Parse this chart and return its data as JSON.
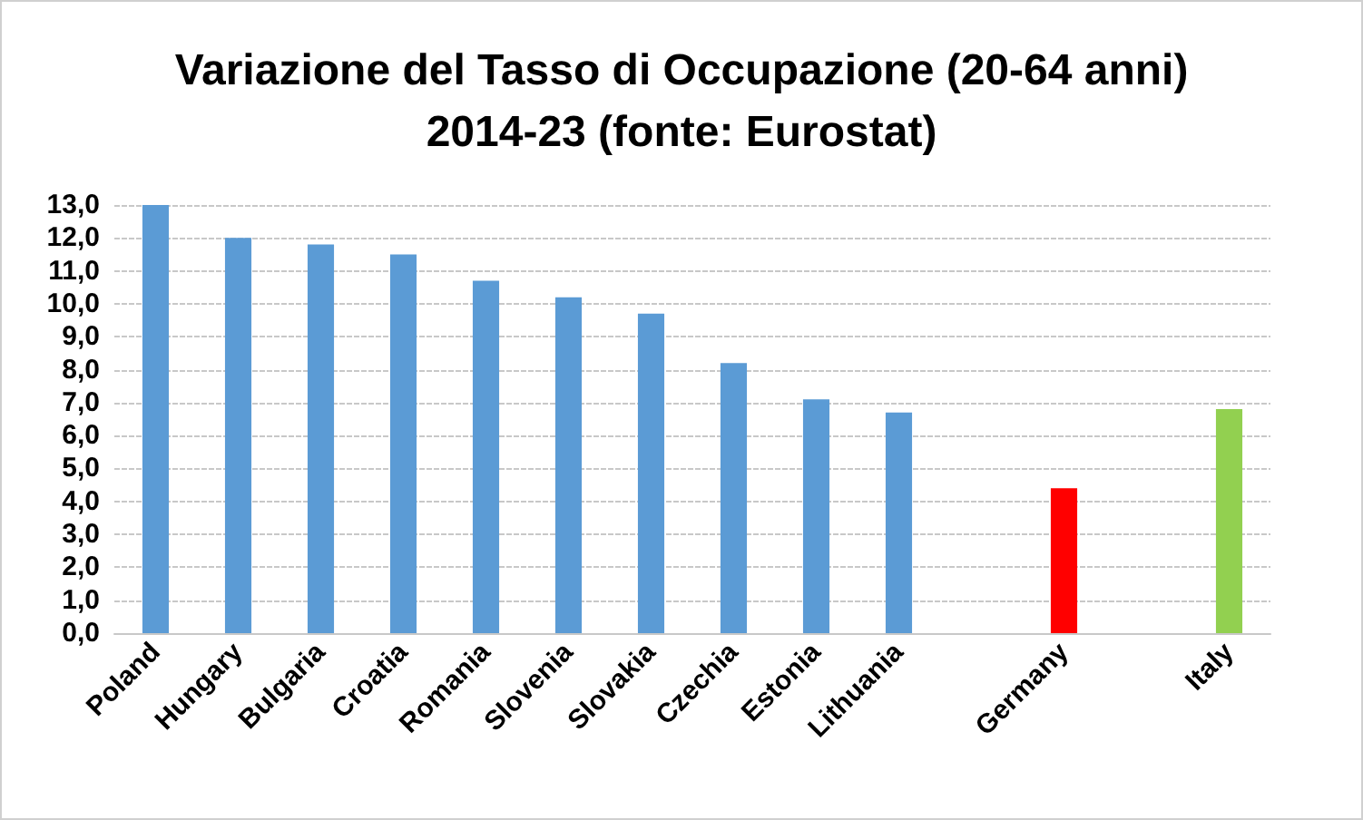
{
  "chart_data": {
    "type": "bar",
    "title": "Variazione del Tasso di Occupazione (20-64 anni)\n2014-23 (fonte: Eurostat)",
    "categories": [
      "Poland",
      "Hungary",
      "Bulgaria",
      "Croatia",
      "Romania",
      "Slovenia",
      "Slovakia",
      "Czechia",
      "Estonia",
      "Lithuania",
      null,
      "Germany",
      null,
      "Italy"
    ],
    "values": [
      13.0,
      12.0,
      11.8,
      11.5,
      10.7,
      10.2,
      9.7,
      8.2,
      7.1,
      6.7,
      null,
      4.4,
      null,
      6.8
    ],
    "colors": [
      "#5b9bd5",
      "#5b9bd5",
      "#5b9bd5",
      "#5b9bd5",
      "#5b9bd5",
      "#5b9bd5",
      "#5b9bd5",
      "#5b9bd5",
      "#5b9bd5",
      "#5b9bd5",
      "#5b9bd5",
      "#ff0000",
      "#5b9bd5",
      "#92d050"
    ],
    "ylim": [
      0,
      13
    ],
    "yticks": [
      {
        "value": 0,
        "label": "0,0"
      },
      {
        "value": 1,
        "label": "1,0"
      },
      {
        "value": 2,
        "label": "2,0"
      },
      {
        "value": 3,
        "label": "3,0"
      },
      {
        "value": 4,
        "label": "4,0"
      },
      {
        "value": 5,
        "label": "5,0"
      },
      {
        "value": 6,
        "label": "6,0"
      },
      {
        "value": 7,
        "label": "7,0"
      },
      {
        "value": 8,
        "label": "8,0"
      },
      {
        "value": 9,
        "label": "9,0"
      },
      {
        "value": 10,
        "label": "10,0"
      },
      {
        "value": 11,
        "label": "11,0"
      },
      {
        "value": 12,
        "label": "12,0"
      },
      {
        "value": 13,
        "label": "13,0"
      }
    ],
    "grid": "y"
  }
}
